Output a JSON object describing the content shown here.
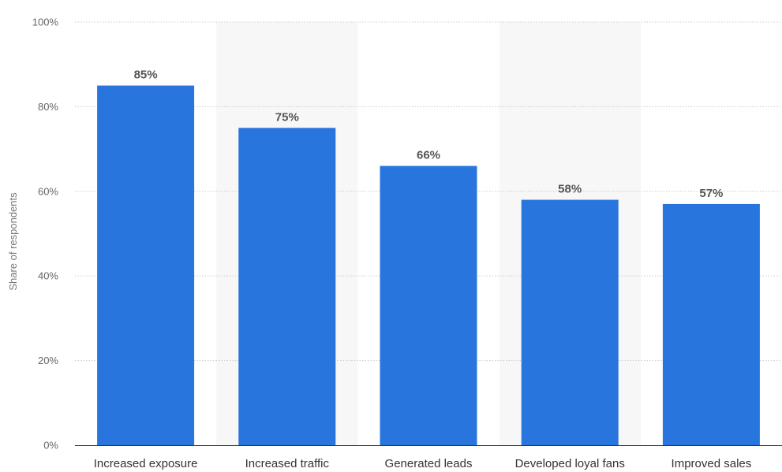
{
  "chart_data": {
    "type": "bar",
    "title": "",
    "xlabel": "",
    "ylabel": "Share of respondents",
    "categories": [
      "Increased exposure",
      "Increased traffic",
      "Generated leads",
      "Developed loyal fans",
      "Improved sales"
    ],
    "values": [
      85,
      75,
      66,
      58,
      57
    ],
    "value_labels": [
      "85%",
      "75%",
      "66%",
      "58%",
      "57%"
    ],
    "ylim": [
      0,
      100
    ],
    "yticks": [
      0,
      20,
      40,
      60,
      80,
      100
    ],
    "ytick_labels": [
      "0%",
      "20%",
      "40%",
      "60%",
      "80%",
      "100%"
    ],
    "grid": true,
    "legend": "none",
    "colors": {
      "bar": "#2876dd",
      "band": "#f7f7f7",
      "grid": "#cccccc",
      "axis": "#333333"
    }
  }
}
